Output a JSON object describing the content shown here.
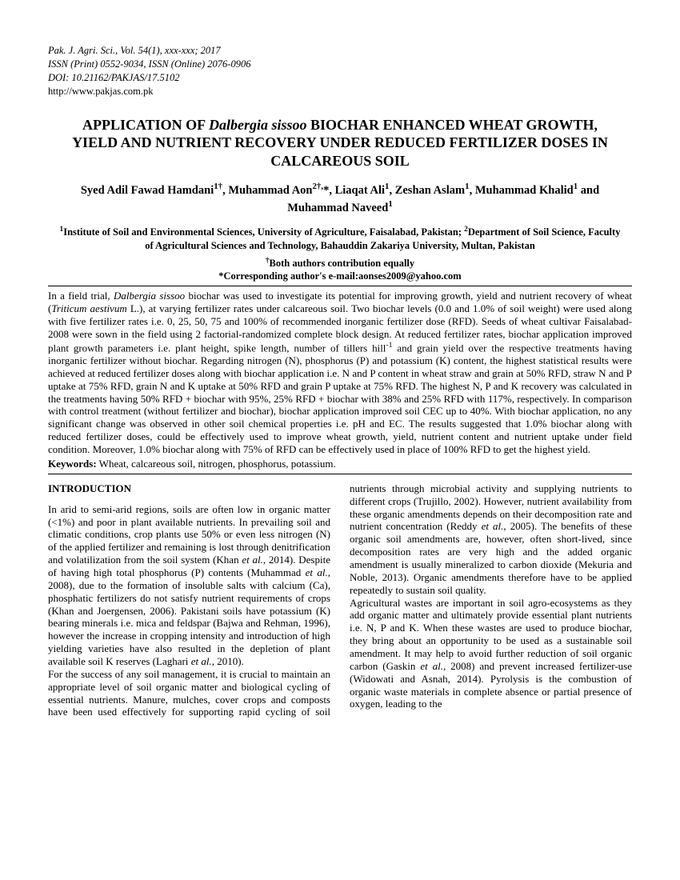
{
  "journal": {
    "line1": "Pak. J. Agri. Sci., Vol. 54(1), xxx-xxx; 2017",
    "line2": "ISSN (Print) 0552-9034, ISSN (Online) 2076-0906",
    "line3": "DOI: 10.21162/PAKJAS/17.5102",
    "url": "http://www.pakjas.com.pk"
  },
  "title": {
    "pre": "APPLICATION OF ",
    "species": "Dalbergia sissoo",
    "post": " BIOCHAR ENHANCED WHEAT GROWTH, YIELD AND NUTRIENT RECOVERY UNDER REDUCED FERTILIZER DOSES IN CALCAREOUS SOIL"
  },
  "authors_html": "Syed Adil Fawad Hamdani<sup>1†</sup>, Muhammad Aon<sup>2†,</sup>*, Liaqat Ali<sup>1</sup>, Zeshan Aslam<sup>1</sup>, Muhammad Khalid<sup>1</sup> and  Muhammad Naveed<sup>1</sup>",
  "affiliations_html": "<sup>1</sup>Institute of Soil and Environmental Sciences, University of Agriculture, Faisalabad, Pakistan; <sup>2</sup>Department of Soil Science, Faculty of Agricultural Sciences and Technology, Bahauddin Zakariya University, Multan, Pakistan",
  "affil_note1": "†Both authors contribution equally",
  "affil_note2": "*Corresponding author's e-mail:aonses2009@yahoo.com",
  "abstract_html": "In a field trial, <span class=\"species\">Dalbergia sissoo</span> biochar was used to investigate its potential for improving growth, yield and nutrient recovery of wheat (<span class=\"species\">Triticum aestivum</span> L.), at varying fertilizer rates under calcareous soil. Two biochar levels (0.0 and 1.0% of soil weight) were used along with five fertilizer rates i.e. 0, 25, 50, 75 and 100% of recommended inorganic fertilizer dose (RFD). Seeds of wheat cultivar Faisalabad-2008 were sown in the field using 2 factorial-randomized complete block design. At reduced fertilizer rates, biochar application improved plant growth parameters i.e. plant height, spike length, number of tillers hill<sup>-1</sup> and grain yield over the respective treatments having inorganic fertilizer without biochar. Regarding nitrogen (N), phosphorus (P) and potassium (K) content, the highest statistical results were achieved at reduced fertilizer doses along with biochar application i.e. N and P content in wheat straw and grain at 50% RFD, straw N and P uptake at 75% RFD, grain N and K uptake at 50% RFD and grain P uptake at 75% RFD. The highest N, P and K recovery was calculated in the treatments having 50% RFD + biochar with 95%, 25% RFD + biochar with 38% and 25% RFD with 117%, respectively. In comparison with control treatment (without fertilizer and biochar), biochar application improved soil CEC up to 40%. With biochar application, no any significant change was observed in other soil chemical properties i.e. pH and EC. The results suggested that 1.0% biochar along with reduced fertilizer doses, could be effectively used to improve wheat growth, yield, nutrient content and nutrient uptake under field condition. Moreover, 1.0% biochar along with 75% of RFD can be effectively used in place of 100% RFD to get the highest yield.",
  "keywords": {
    "label": "Keywords:",
    "text": " Wheat, calcareous soil, nitrogen, phosphorus, potassium."
  },
  "intro": {
    "heading": "INTRODUCTION",
    "p1_html": "In arid to semi-arid regions, soils are often low in organic matter (&lt;1%) and poor in plant available nutrients. In prevailing soil and climatic conditions, crop plants use 50% or even less nitrogen (N) of the applied fertilizer and remaining is lost through denitrification and volatilization from the soil system (Khan <span class=\"ital\">et al.</span>, 2014). Despite of having high total phosphorus (P) contents (Muhammad <span class=\"ital\">et al.</span>, 2008), due to the formation of insoluble salts with calcium (Ca), phosphatic fertilizers do not satisfy nutrient requirements of crops (Khan and Joergensen, 2006). Pakistani soils have potassium (K) bearing minerals i.e. mica and feldspar (Bajwa and Rehman, 1996), however the increase in cropping intensity and introduction of high yielding varieties have also resulted in the depletion of plant available soil K reserves (Laghari <span class=\"ital\">et al.</span>, 2010).",
    "p2_html": "For the success of any soil management, it is crucial to maintain an appropriate level of soil organic matter and biological cycling of essential nutrients. Manure, mulches, cover crops and composts have been used effectively for supporting rapid cycling of soil nutrients through microbial activity and supplying nutrients to different crops (Trujillo, 2002). However, nutrient availability from these organic amendments depends on their decomposition rate and nutrient concentration (Reddy <span class=\"ital\">et al.</span>, 2005). The benefits of these organic soil amendments are, however, often short-lived, since decomposition rates are very high and the added organic amendment is usually mineralized to carbon dioxide (Mekuria and Noble, 2013). Organic amendments therefore have to be applied repeatedly to sustain soil quality.",
    "p3_html": "Agricultural wastes are important in soil agro-ecosystems as they add organic matter and ultimately provide essential plant nutrients i.e. N, P and K. When these wastes are used to produce biochar, they bring about an opportunity to be used as a sustainable soil amendment. It may help to avoid further reduction of soil organic carbon (Gaskin <span class=\"ital\">et al.</span>, 2008) and prevent increased fertilizer-use (Widowati and Asnah, 2014). Pyrolysis is the combustion of organic waste materials in complete absence or partial presence of oxygen, leading to the"
  }
}
